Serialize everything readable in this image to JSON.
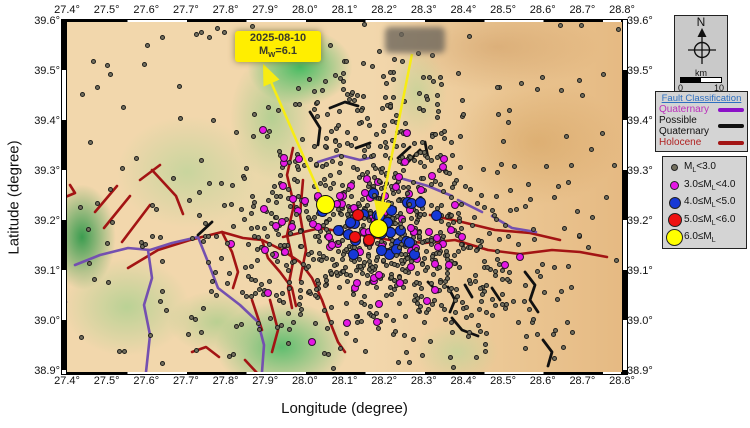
{
  "map_extent": {
    "lon": [
      27.4,
      28.8
    ],
    "lat": [
      38.9,
      39.6
    ]
  },
  "axes": {
    "xlabel": "Longitude (degree)",
    "ylabel": "Latitude (degree)",
    "lon_ticks": [
      "27.4°",
      "27.5°",
      "27.6°",
      "27.7°",
      "27.8°",
      "27.9°",
      "28.0°",
      "28.1°",
      "28.2°",
      "28.3°",
      "28.4°",
      "28.5°",
      "28.6°",
      "28.7°",
      "28.8°"
    ],
    "lat_ticks": [
      "39.6°",
      "39.5°",
      "39.4°",
      "39.3°",
      "39.2°",
      "39.1°",
      "39.0°",
      "38.9°"
    ]
  },
  "annotation": {
    "date": "2025-08-10",
    "mag_prefix": "M",
    "mag_sub": "w",
    "mag_suffix": "=6.1"
  },
  "compass": {
    "north": "N",
    "scale_unit": "km",
    "scale_min": "0",
    "scale_max": "10"
  },
  "fault_legend": {
    "title": "Fault Classification",
    "title_color": "#2e6fc0",
    "items": [
      {
        "label": "Quaternary",
        "text_color": "#bb2fbb",
        "line_color": "#8b12c7"
      },
      {
        "label": "Possible Quaternary",
        "text_color": "#111111",
        "line_color": "#111111"
      },
      {
        "label": "Holocene",
        "text_color": "#b02020",
        "line_color": "#a31414"
      }
    ]
  },
  "magnitude_legend": {
    "items": [
      {
        "pre": "M",
        "sub": "L",
        "post": "<3.0",
        "color": "#74705f",
        "size": 7
      },
      {
        "pre": "3.0≤M",
        "sub": "L",
        "post": "<4.0",
        "color": "#e517e5",
        "size": 9
      },
      {
        "pre": "4.0≤M",
        "sub": "L",
        "post": "<5.0",
        "color": "#1638d6",
        "size": 12
      },
      {
        "pre": "5.0≤M",
        "sub": "L",
        "post": "<6.0",
        "color": "#ee1111",
        "size": 14
      },
      {
        "pre": "6.0≤M",
        "sub": "L",
        "post": "",
        "color": "#ffff00",
        "size": 17
      }
    ]
  },
  "seismicity": {
    "classes": {
      "micro": {
        "color": "#74705f",
        "size": 5
      },
      "minor": {
        "color": "#e517e5",
        "size": 8
      },
      "light": {
        "color": "#1638d6",
        "size": 11
      },
      "moderate": {
        "color": "#ee1111",
        "size": 12
      },
      "major": {
        "color": "#ffff00",
        "size": 19
      }
    },
    "clusters": [
      {
        "cls": "micro",
        "n": 140,
        "uniform": true
      },
      {
        "cls": "micro",
        "n": 620,
        "lon": 28.19,
        "lat": 39.18,
        "sx": 0.175,
        "sy": 0.1
      },
      {
        "cls": "micro",
        "n": 90,
        "lon": 28.19,
        "lat": 39.43,
        "sx": 0.12,
        "sy": 0.07
      },
      {
        "cls": "micro",
        "n": 55,
        "lon": 28.42,
        "lat": 39.03,
        "sx": 0.17,
        "sy": 0.07
      },
      {
        "cls": "micro",
        "n": 50,
        "lon": 27.81,
        "lat": 39.1,
        "sx": 0.16,
        "sy": 0.1
      },
      {
        "cls": "minor",
        "n": 85,
        "lon": 28.18,
        "lat": 39.19,
        "sx": 0.13,
        "sy": 0.075
      },
      {
        "cls": "light",
        "n": 27,
        "lon": 28.2,
        "lat": 39.19,
        "sx": 0.085,
        "sy": 0.042
      }
    ],
    "top_scatter": {
      "cls": "micro",
      "n": 70,
      "lon": 28.19,
      "lat": 39.18,
      "sx": 0.16,
      "sy": 0.09
    },
    "events": [
      {
        "cls": "minor",
        "lon": 27.894,
        "lat": 39.384
      },
      {
        "cls": "minor",
        "lon": 28.348,
        "lat": 39.31
      },
      {
        "cls": "minor",
        "lon": 28.333,
        "lat": 39.168
      },
      {
        "cls": "minor",
        "lon": 28.543,
        "lat": 39.13
      },
      {
        "cls": "minor",
        "lon": 28.106,
        "lat": 38.998
      },
      {
        "cls": "minor",
        "lon": 28.182,
        "lat": 39.0
      },
      {
        "cls": "minor",
        "lon": 28.018,
        "lat": 38.96
      },
      {
        "cls": "minor",
        "lon": 28.131,
        "lat": 39.078
      },
      {
        "cls": "minor",
        "lon": 28.24,
        "lat": 39.078
      },
      {
        "cls": "moderate",
        "lon": 28.134,
        "lat": 39.214
      },
      {
        "cls": "moderate",
        "lon": 28.127,
        "lat": 39.17
      },
      {
        "cls": "moderate",
        "lon": 28.162,
        "lat": 39.164
      }
    ],
    "mainshocks": [
      {
        "lon": 28.051,
        "lat": 39.236
      },
      {
        "lon": 28.185,
        "lat": 39.188
      }
    ]
  }
}
